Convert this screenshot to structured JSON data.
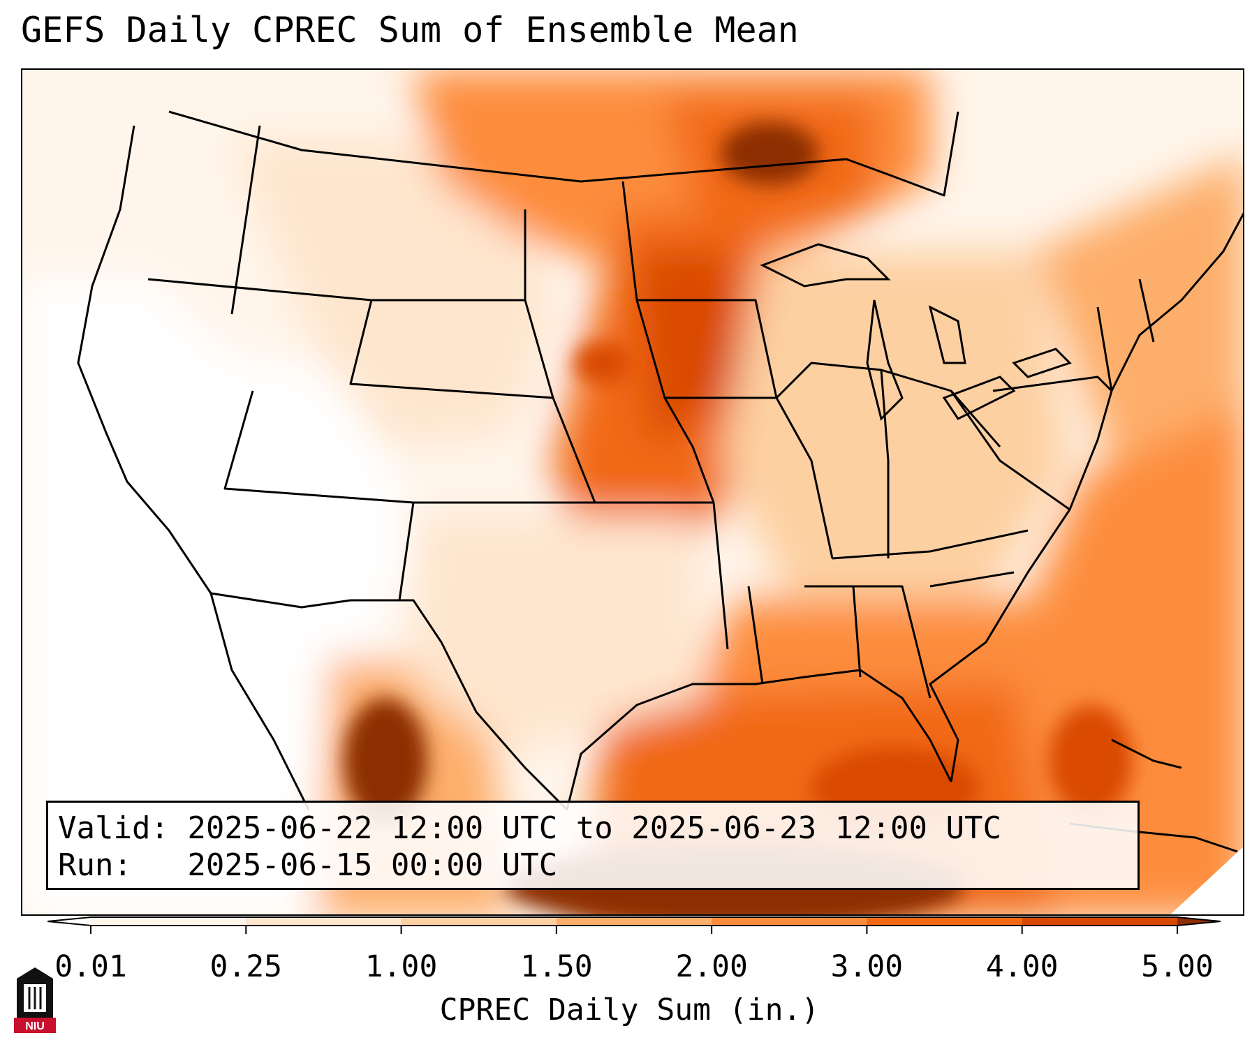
{
  "title": "GEFS Daily CPREC Sum of Ensemble Mean",
  "info": {
    "valid_line": "Valid: 2025-06-22 12:00 UTC to 2025-06-23 12:00 UTC",
    "run_line": "Run:   2025-06-15 00:00 UTC"
  },
  "colorbar": {
    "label": "CPREC Daily Sum (in.)",
    "ticks": [
      "0.01",
      "0.25",
      "1.00",
      "1.50",
      "2.00",
      "3.00",
      "4.00",
      "5.00"
    ],
    "colors": [
      "#fff5eb",
      "#fee6ce",
      "#fdd0a2",
      "#fdae6b",
      "#fd8d3c",
      "#f16913",
      "#d94801",
      "#8c2d04"
    ],
    "extend": "both"
  },
  "logo": {
    "text": "NIU",
    "icon": "niu-building-logo-icon",
    "colors": {
      "shield": "#111111",
      "band": "#c8102e"
    }
  },
  "map": {
    "projection": "lambert-conformal",
    "region": "CONUS",
    "colormap": "Oranges",
    "colors": {
      "water_edge": "#e8e8e8",
      "lines": "#000000"
    }
  }
}
